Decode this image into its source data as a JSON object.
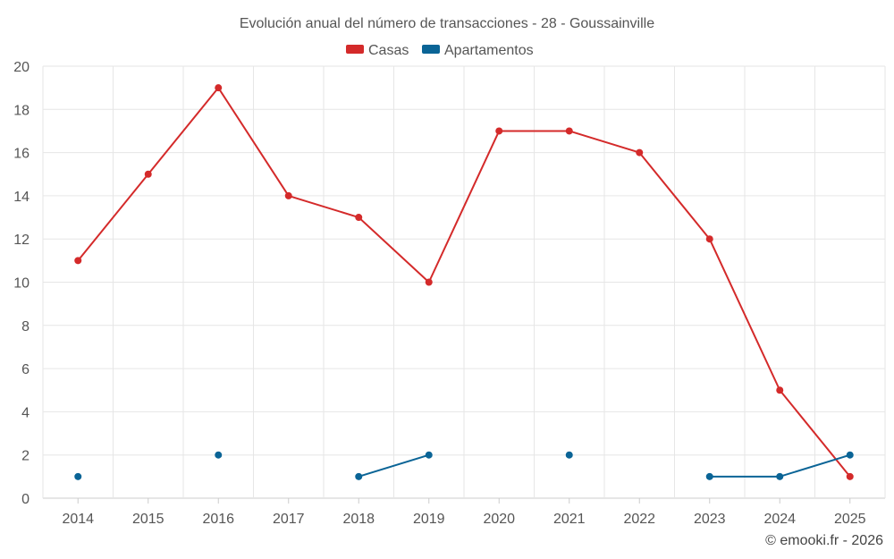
{
  "chart_data": {
    "type": "line",
    "title": "Evolución anual del número de transacciones - 28 - Goussainville",
    "categories": [
      "2014",
      "2015",
      "2016",
      "2017",
      "2018",
      "2019",
      "2020",
      "2021",
      "2022",
      "2023",
      "2024",
      "2025"
    ],
    "ylim": [
      0,
      20
    ],
    "yticks": [
      0,
      2,
      4,
      6,
      8,
      10,
      12,
      14,
      16,
      18,
      20
    ],
    "grid": true,
    "legend_position": "top-center",
    "series": [
      {
        "name": "Casas",
        "color": "#d42a2a",
        "values": [
          11,
          15,
          19,
          14,
          13,
          10,
          17,
          17,
          16,
          12,
          5,
          1
        ]
      },
      {
        "name": "Apartamentos",
        "color": "#0a6496",
        "values": [
          1,
          null,
          2,
          null,
          1,
          2,
          null,
          2,
          null,
          1,
          1,
          2
        ]
      }
    ]
  },
  "credit": "© emooki.fr - 2026"
}
